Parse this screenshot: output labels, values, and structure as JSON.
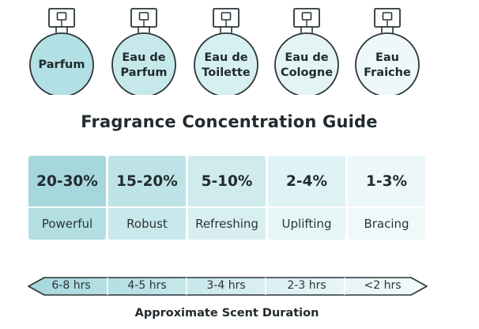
{
  "bottles": [
    {
      "line1": "Parfum",
      "line2": "",
      "color": "#b3e0e4"
    },
    {
      "line1": "Eau de",
      "line2": "Parfum",
      "color": "#c6e8eb"
    },
    {
      "line1": "Eau de",
      "line2": "Toilette",
      "color": "#d6eff1"
    },
    {
      "line1": "Eau de",
      "line2": "Cologne",
      "color": "#e4f4f5"
    },
    {
      "line1": "Eau",
      "line2": "Fraiche",
      "color": "#eef8f9"
    }
  ],
  "title": "Fragrance Concentration Guide",
  "levels": [
    {
      "percent": "20-30%",
      "strength": "Powerful",
      "top_color": "#a6d7dc",
      "bottom_color": "#b3dfe3"
    },
    {
      "percent": "15-20%",
      "strength": "Robust",
      "top_color": "#bde3e7",
      "bottom_color": "#c8e8eb"
    },
    {
      "percent": "5-10%",
      "strength": "Refreshing",
      "top_color": "#cfebee",
      "bottom_color": "#d8eff1"
    },
    {
      "percent": "2-4%",
      "strength": "Uplifting",
      "top_color": "#dff2f4",
      "bottom_color": "#e6f5f6"
    },
    {
      "percent": "1-3%",
      "strength": "Bracing",
      "top_color": "#ebf7f8",
      "bottom_color": "#f0f9fa"
    }
  ],
  "durations": [
    "6-8 hrs",
    "4-5 hrs",
    "3-4 hrs",
    "2-3 hrs",
    "<2 hrs"
  ],
  "duration_title": "Approximate Scent Duration",
  "colors": {
    "outline": "#2a3438",
    "arrow_fill": [
      "#a6d7dc",
      "#bde3e7",
      "#d3ecef",
      "#e3f3f5",
      "#f3fafb"
    ]
  }
}
